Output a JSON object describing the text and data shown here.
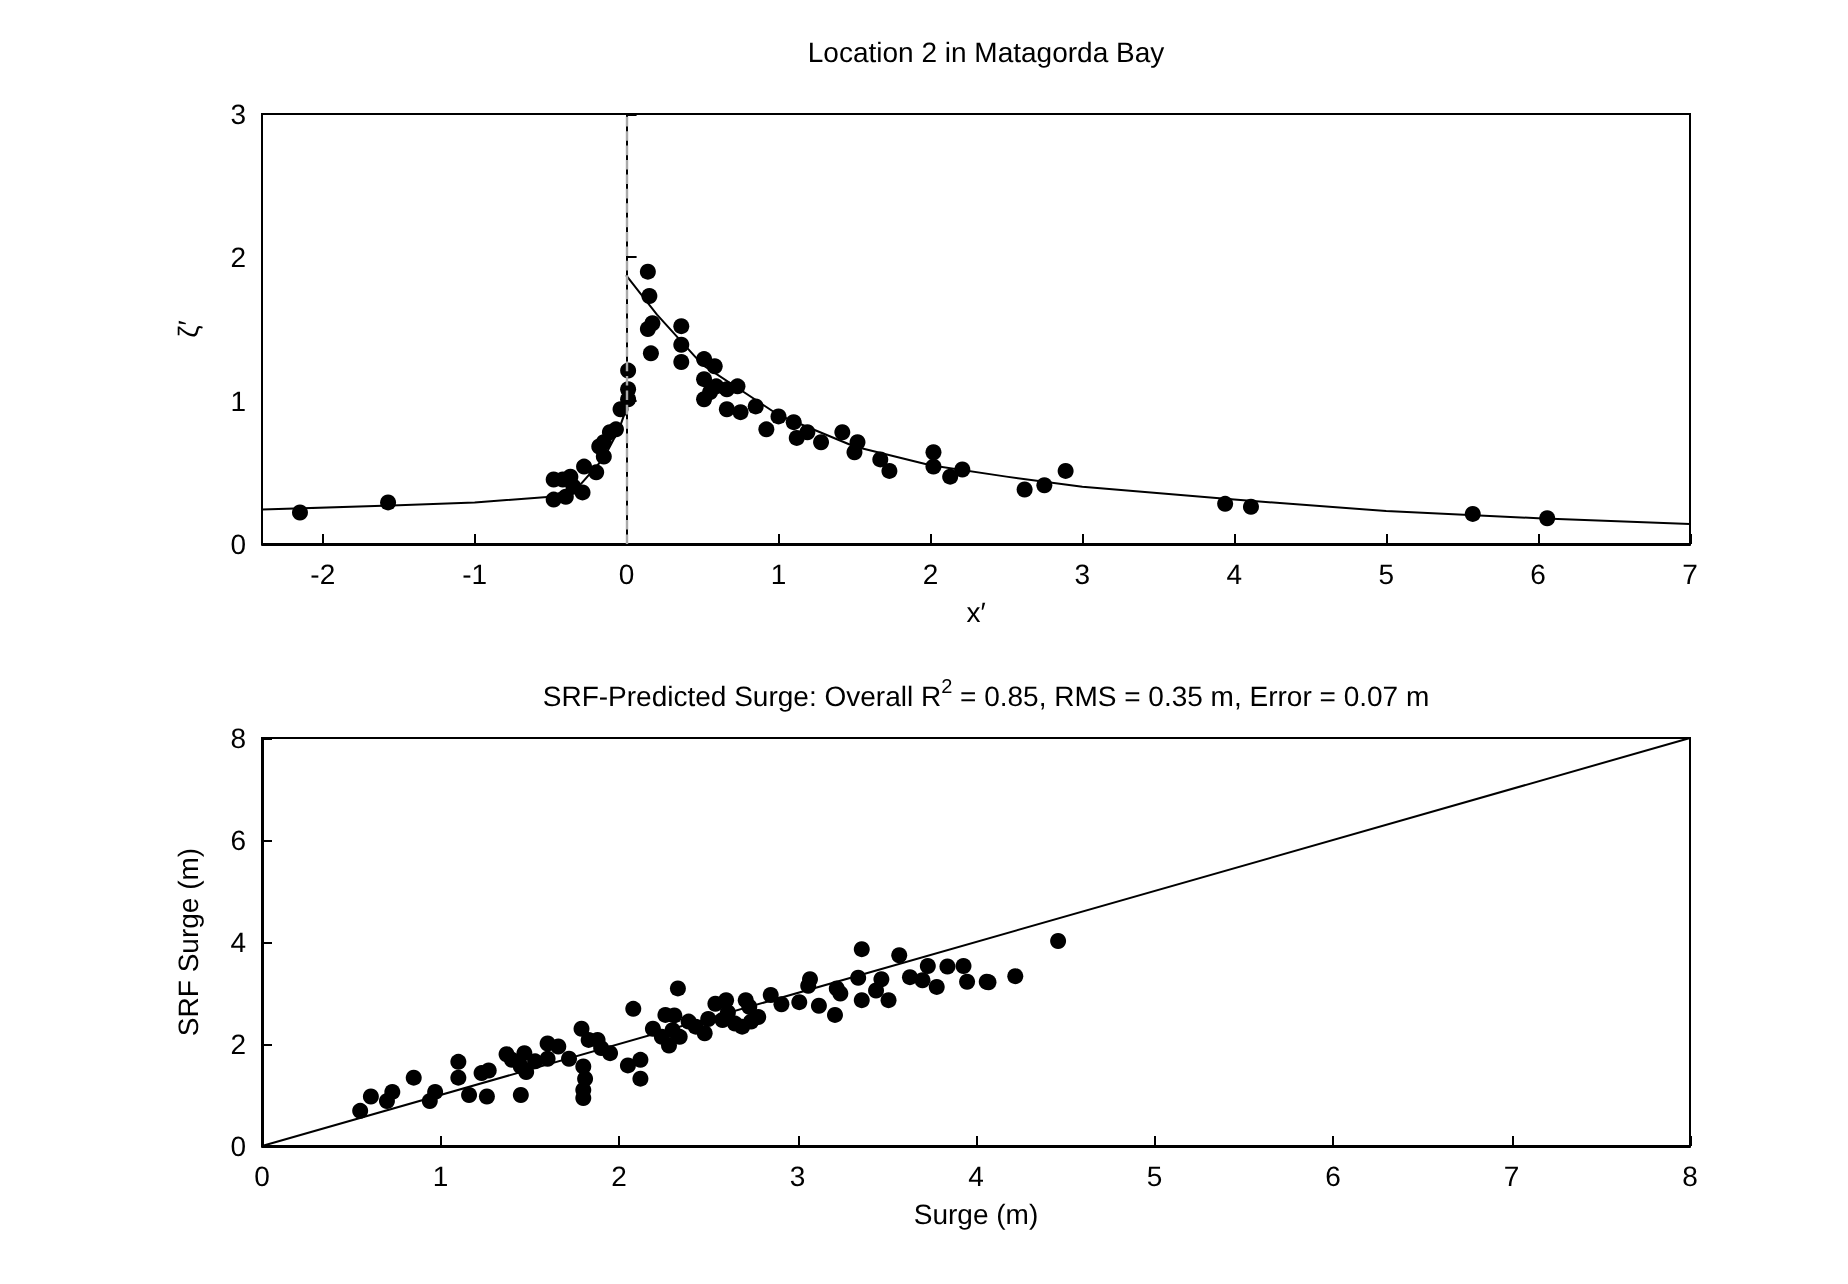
{
  "chart_data": [
    {
      "type": "scatter",
      "title": "Location 2 in Matagorda Bay",
      "xlabel": "x′",
      "ylabel": "ζ′",
      "xlim": [
        -2.4,
        7
      ],
      "xticks": [
        -2,
        -1,
        0,
        1,
        2,
        3,
        4,
        5,
        6,
        7
      ],
      "ylim": [
        0,
        3
      ],
      "yticks": [
        0,
        1,
        2,
        3
      ],
      "ref_lines": [
        {
          "axis": "x",
          "value": 0,
          "color": "#aaaaaa",
          "line_style": "dashed"
        }
      ],
      "series": [
        {
          "color": "#000000",
          "marker": "circle",
          "x": [
            -2.15,
            -1.57,
            -0.48,
            -0.48,
            -0.37,
            -0.4,
            -0.29,
            -0.28,
            -0.35,
            -0.42,
            -0.2,
            -0.18,
            -0.15,
            -0.11,
            -0.07,
            -0.15,
            -0.04,
            0.01,
            0.01,
            0.01,
            0.14,
            0.15,
            0.14,
            0.17,
            0.16,
            0.36,
            0.36,
            0.36,
            0.51,
            0.51,
            0.51,
            0.58,
            0.59,
            0.55,
            0.66,
            0.66,
            0.73,
            0.75,
            0.85,
            0.92,
            1.0,
            1.1,
            1.12,
            1.19,
            1.28,
            1.42,
            1.5,
            1.52,
            1.67,
            1.73,
            2.02,
            2.02,
            2.13,
            2.21,
            2.62,
            2.75,
            2.89,
            3.94,
            4.11,
            5.57,
            6.06
          ],
          "values": [
            0.22,
            0.29,
            0.31,
            0.45,
            0.47,
            0.33,
            0.36,
            0.54,
            0.4,
            0.45,
            0.5,
            0.68,
            0.61,
            0.78,
            0.8,
            0.71,
            0.94,
            1.01,
            1.08,
            1.21,
            1.9,
            1.73,
            1.5,
            1.54,
            1.33,
            1.52,
            1.39,
            1.27,
            1.29,
            1.15,
            1.01,
            1.24,
            1.1,
            1.06,
            0.94,
            1.08,
            1.1,
            0.92,
            0.96,
            0.8,
            0.89,
            0.85,
            0.74,
            0.78,
            0.71,
            0.78,
            0.64,
            0.71,
            0.59,
            0.51,
            0.64,
            0.54,
            0.47,
            0.52,
            0.38,
            0.41,
            0.51,
            0.28,
            0.26,
            0.21,
            0.18
          ]
        },
        {
          "type": "line",
          "color": "#000000",
          "marker": "none",
          "line_style": "solid",
          "x": [
            -2.4,
            -1.5,
            -1,
            -0.5,
            -0.3,
            -0.15,
            -0.05,
            0
          ],
          "values": [
            0.24,
            0.27,
            0.29,
            0.33,
            0.42,
            0.6,
            0.8,
            0.95
          ]
        },
        {
          "type": "line",
          "color": "#000000",
          "marker": "none",
          "line_style": "solid",
          "x": [
            0,
            0.2,
            0.5,
            1,
            1.5,
            2,
            2.5,
            3,
            4,
            5,
            6,
            7
          ],
          "values": [
            1.87,
            1.6,
            1.25,
            0.9,
            0.68,
            0.55,
            0.47,
            0.4,
            0.31,
            0.23,
            0.18,
            0.14
          ]
        }
      ]
    },
    {
      "type": "scatter",
      "title": "SRF-Predicted Surge: Overall R$^{2}$ = 0.85, RMS = 0.35 m, Error = 0.07 m",
      "xlabel": "Surge (m)",
      "ylabel": "SRF Surge (m)",
      "xlim": [
        0,
        8
      ],
      "xticks": [
        0,
        1,
        2,
        3,
        4,
        5,
        6,
        7,
        8
      ],
      "ylim": [
        0,
        8
      ],
      "yticks": [
        0,
        2,
        4,
        6,
        8
      ],
      "series": [
        {
          "color": "#000000",
          "marker": "circle",
          "x": [
            0.55,
            0.61,
            0.7,
            0.73,
            0.85,
            0.94,
            0.97,
            1.1,
            1.1,
            1.16,
            1.23,
            1.26,
            1.27,
            1.37,
            1.4,
            1.45,
            1.47,
            1.45,
            1.48,
            1.53,
            1.6,
            1.6,
            1.66,
            1.72,
            1.79,
            1.8,
            1.81,
            1.8,
            1.8,
            1.83,
            1.88,
            1.9,
            1.95,
            2.05,
            2.08,
            2.12,
            2.12,
            2.19,
            2.24,
            2.26,
            2.28,
            2.3,
            2.33,
            2.31,
            2.34,
            2.39,
            2.43,
            2.48,
            2.5,
            2.54,
            2.58,
            2.6,
            2.61,
            2.65,
            2.69,
            2.71,
            2.73,
            2.74,
            2.78,
            2.85,
            2.91,
            3.01,
            3.06,
            3.07,
            3.12,
            3.21,
            3.22,
            3.24,
            3.34,
            3.36,
            3.36,
            3.44,
            3.47,
            3.51,
            3.57,
            3.63,
            3.7,
            3.73,
            3.78,
            3.84,
            3.93,
            3.95,
            4.06,
            4.07,
            4.22,
            4.46
          ],
          "values": [
            0.69,
            0.97,
            0.88,
            1.06,
            1.34,
            0.88,
            1.06,
            1.65,
            1.34,
            1.0,
            1.43,
            0.97,
            1.48,
            1.8,
            1.69,
            1.0,
            1.82,
            1.56,
            1.45,
            1.66,
            2.01,
            1.71,
            1.95,
            1.71,
            2.3,
            1.56,
            1.32,
            1.1,
            0.94,
            2.08,
            2.08,
            1.92,
            1.82,
            1.58,
            2.69,
            1.69,
            1.32,
            2.3,
            2.14,
            2.57,
            1.97,
            2.27,
            3.09,
            2.56,
            2.14,
            2.44,
            2.34,
            2.21,
            2.49,
            2.79,
            2.47,
            2.86,
            2.62,
            2.4,
            2.34,
            2.86,
            2.73,
            2.44,
            2.53,
            2.96,
            2.78,
            2.82,
            3.14,
            3.27,
            2.75,
            2.57,
            3.09,
            2.99,
            3.3,
            3.86,
            2.86,
            3.05,
            3.27,
            2.86,
            3.74,
            3.31,
            3.25,
            3.53,
            3.12,
            3.52,
            3.53,
            3.22,
            3.22,
            3.21,
            3.33,
            4.02
          ]
        },
        {
          "type": "line",
          "color": "#000000",
          "marker": "none",
          "line_style": "solid",
          "x": [
            0,
            8
          ],
          "values": [
            0,
            8
          ]
        }
      ]
    }
  ]
}
